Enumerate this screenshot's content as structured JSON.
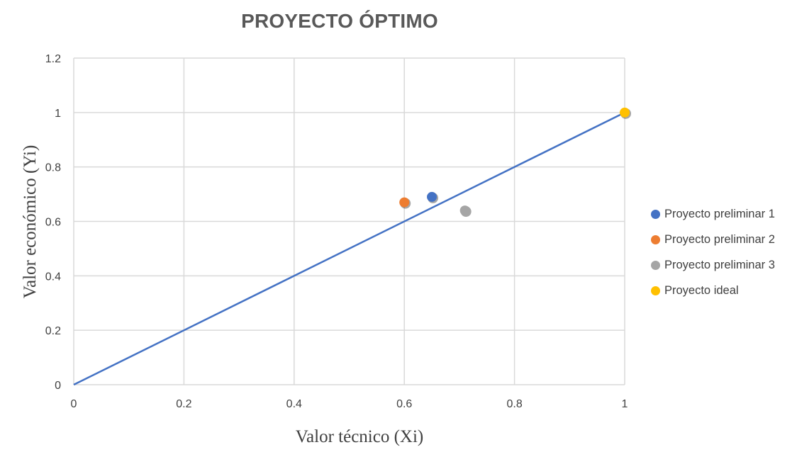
{
  "chart_data": {
    "type": "scatter",
    "title": "PROYECTO ÓPTIMO",
    "xlabel": "Valor técnico (Xi)",
    "ylabel": "Valor económico (Yi)",
    "xlim": [
      0,
      1
    ],
    "ylim": [
      0,
      1.2
    ],
    "x_ticks": [
      "0",
      "0.2",
      "0.4",
      "0.6",
      "0.8",
      "1"
    ],
    "y_ticks": [
      "0",
      "0.2",
      "0.4",
      "0.6",
      "0.8",
      "1",
      "1.2"
    ],
    "grid": true,
    "legend_position": "right",
    "series": [
      {
        "name": "Proyecto preliminar 1",
        "color": "#4472c4",
        "points": [
          {
            "x": 0.65,
            "y": 0.69
          }
        ]
      },
      {
        "name": "Proyecto preliminar 2",
        "color": "#ed7d31",
        "points": [
          {
            "x": 0.6,
            "y": 0.67
          }
        ]
      },
      {
        "name": "Proyecto preliminar 3",
        "color": "#a5a5a5",
        "points": [
          {
            "x": 0.71,
            "y": 0.64
          }
        ]
      },
      {
        "name": "Proyecto ideal",
        "color": "#ffc000",
        "points": [
          {
            "x": 1.0,
            "y": 1.0
          }
        ]
      }
    ],
    "reference_line": {
      "color": "#4472c4",
      "points": [
        {
          "x": 0,
          "y": 0
        },
        {
          "x": 1,
          "y": 1
        }
      ]
    }
  }
}
